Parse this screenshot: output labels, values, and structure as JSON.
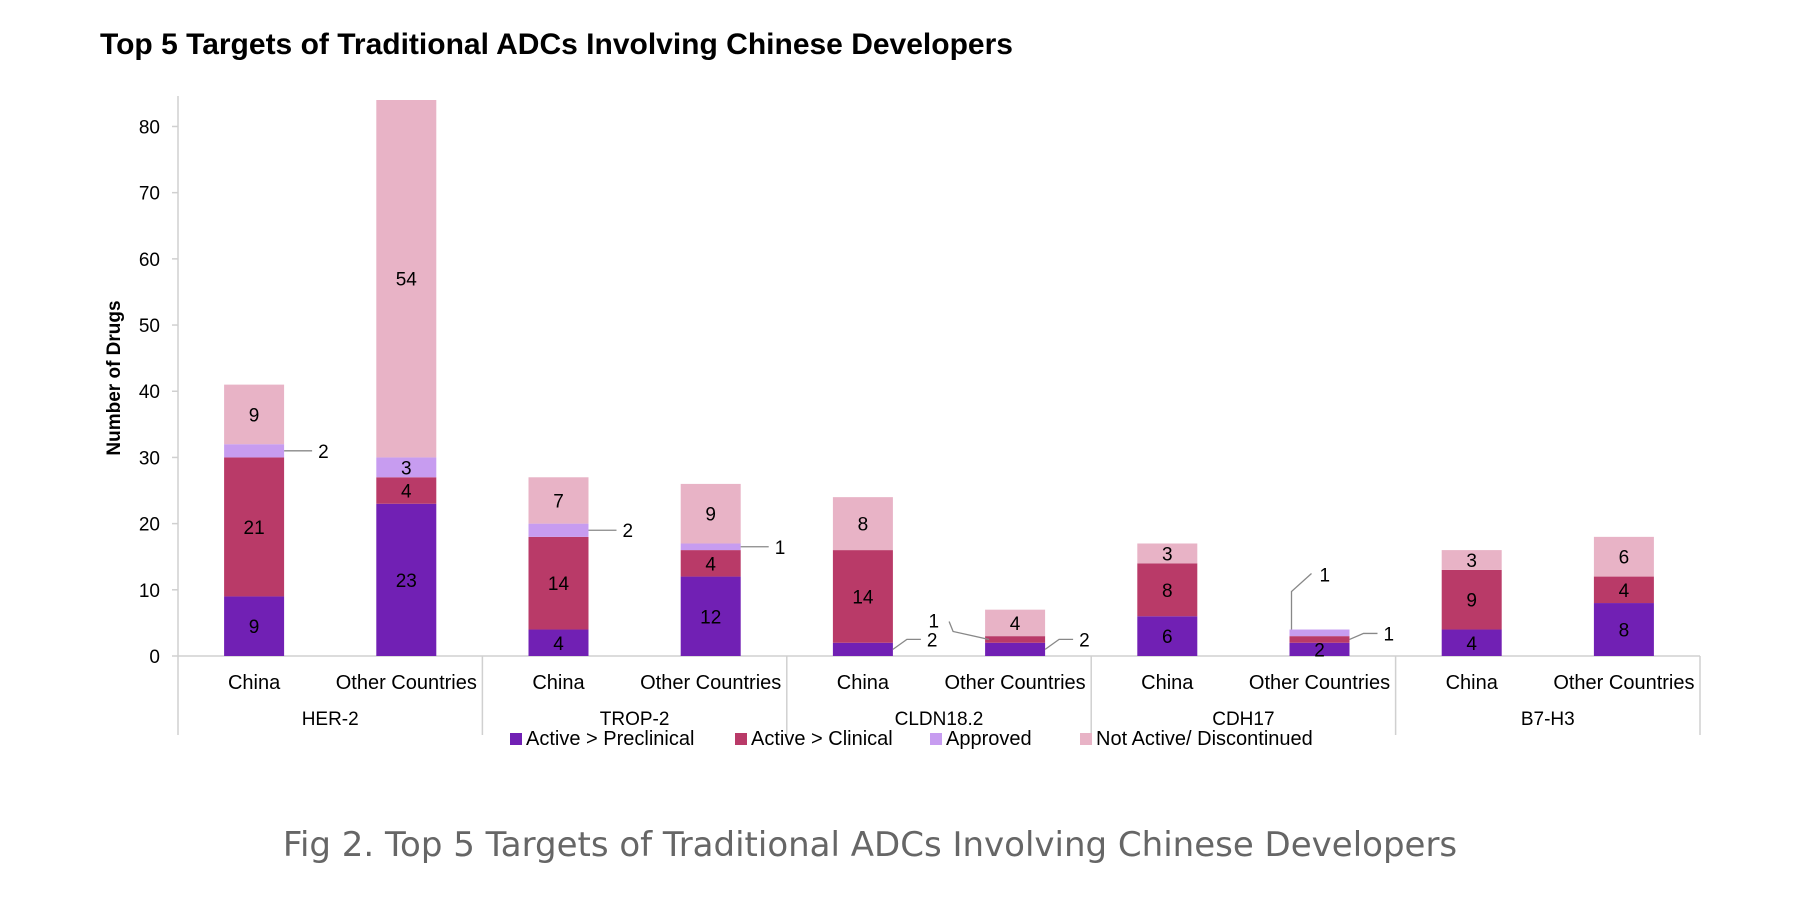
{
  "caption": "Fig 2. Top 5 Targets of Traditional ADCs Involving Chinese Developers",
  "chart_data": {
    "type": "bar",
    "stacked": true,
    "title": "Top 5 Targets of Traditional ADCs Involving Chinese Developers",
    "xlabel": "",
    "ylabel": "Number of Drugs",
    "ylim": [
      0,
      84
    ],
    "yticks": [
      0,
      10,
      20,
      30,
      40,
      50,
      60,
      70,
      80
    ],
    "grid": false,
    "legend_position": "bottom",
    "groups": [
      "HER-2",
      "TROP-2",
      "CLDN18.2",
      "CDH17",
      "B7-H3"
    ],
    "categories": [
      "China",
      "Other Countries",
      "China",
      "Other Countries",
      "China",
      "Other Countries",
      "China",
      "Other Countries",
      "China",
      "Other Countries"
    ],
    "series": [
      {
        "name": "Active > Preclinical",
        "color": "#7120b4",
        "values": [
          9,
          23,
          4,
          12,
          2,
          2,
          6,
          2,
          4,
          8
        ]
      },
      {
        "name": "Active > Clinical",
        "color": "#b93a68",
        "values": [
          21,
          4,
          14,
          4,
          14,
          1,
          8,
          1,
          9,
          4
        ]
      },
      {
        "name": "Approved",
        "color": "#c79cf0",
        "values": [
          2,
          3,
          2,
          1,
          0,
          0,
          0,
          1,
          0,
          0
        ]
      },
      {
        "name": "Not Active/ Discontinued",
        "color": "#e8b3c6",
        "values": [
          9,
          54,
          7,
          9,
          8,
          4,
          3,
          0,
          3,
          6
        ]
      }
    ]
  }
}
